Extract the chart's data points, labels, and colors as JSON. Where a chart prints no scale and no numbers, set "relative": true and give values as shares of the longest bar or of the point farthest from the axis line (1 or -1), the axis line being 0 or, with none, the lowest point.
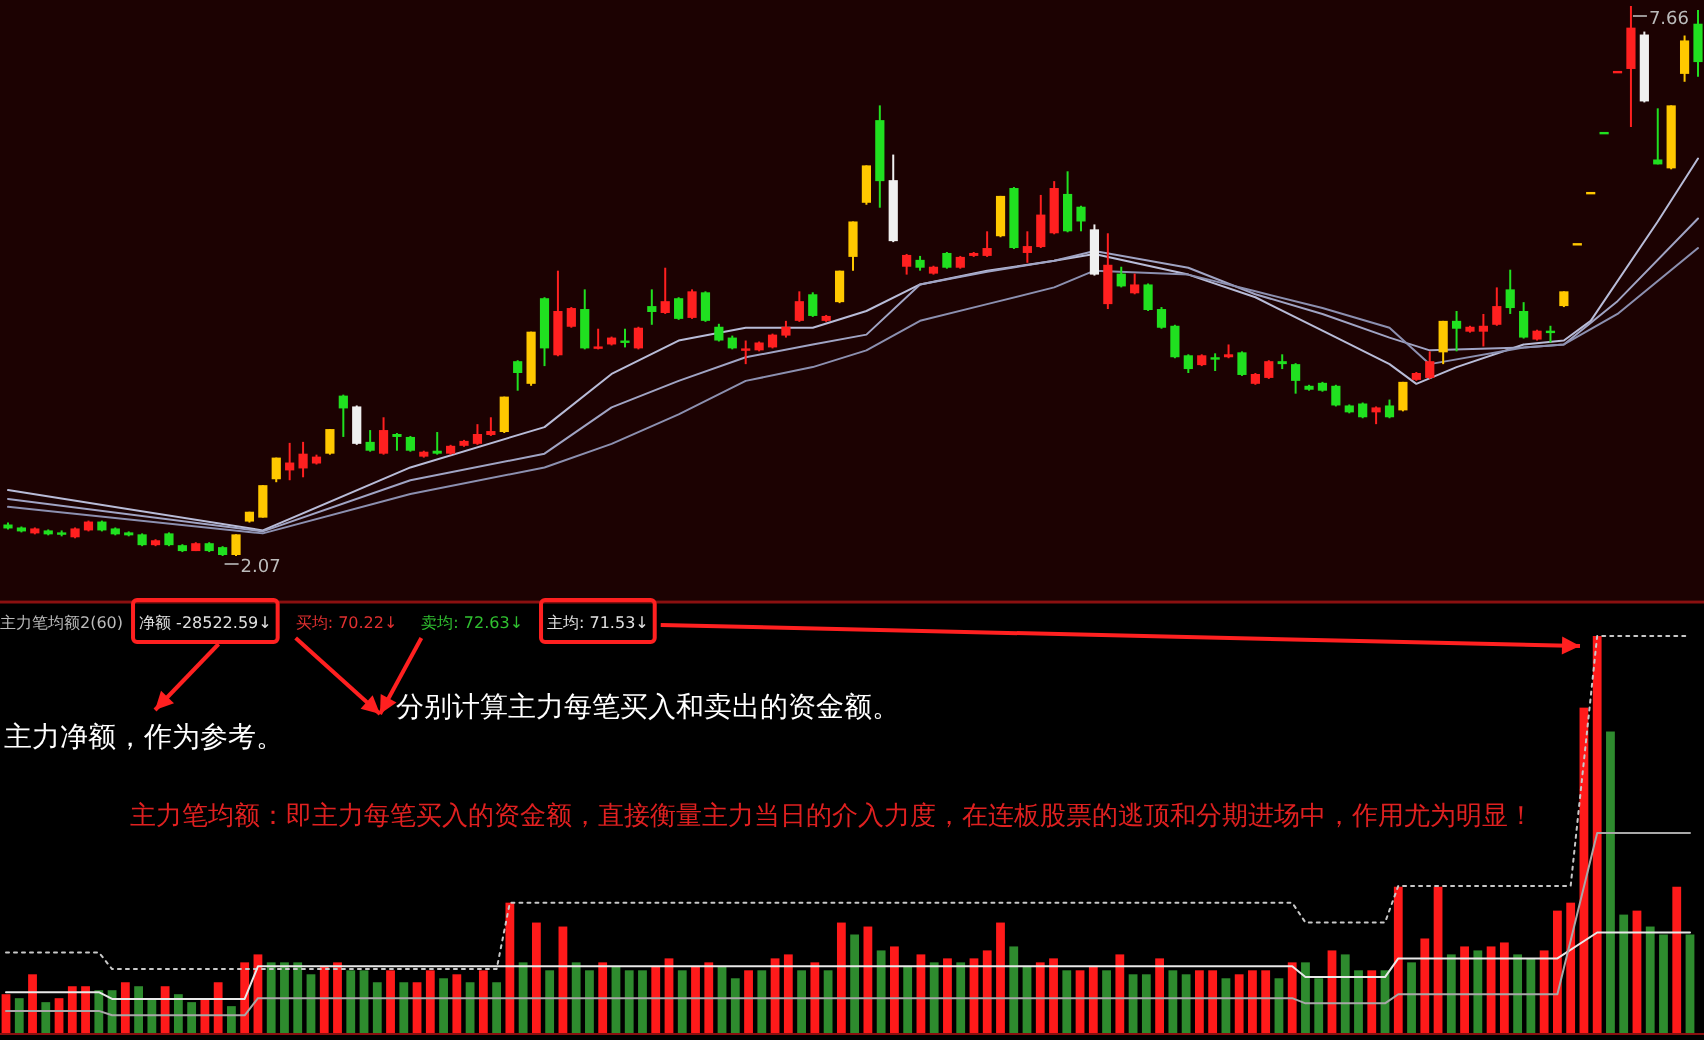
{
  "chart_data": [
    {
      "type": "candlestick",
      "categories": [
        null,
        null,
        null,
        null,
        null,
        null,
        null,
        null,
        null,
        null,
        null,
        null,
        null,
        null,
        null,
        null,
        null,
        null,
        null,
        null,
        null,
        null,
        null,
        null,
        null,
        null,
        null,
        null,
        null,
        null,
        null,
        null,
        null,
        null,
        null,
        null,
        null,
        null,
        null,
        null,
        null,
        null,
        null,
        null,
        null,
        null,
        null,
        null,
        null,
        null,
        null,
        null,
        null,
        null,
        null,
        null,
        null,
        null,
        null,
        null,
        null,
        null,
        null,
        null,
        null,
        null,
        null,
        null,
        null,
        null,
        null,
        null,
        null,
        null,
        null,
        null,
        null,
        null,
        null,
        null,
        null,
        null,
        null,
        null,
        null,
        null,
        null,
        null,
        null,
        null,
        null,
        null,
        null,
        null,
        null,
        null,
        null,
        null,
        null,
        null,
        null,
        null,
        null,
        null,
        null,
        null,
        null,
        null,
        null,
        null,
        null,
        null,
        null,
        null,
        null,
        null,
        null,
        null,
        null,
        null,
        null,
        null,
        null,
        null,
        null,
        null,
        null
      ],
      "ohlc": [
        [
          2.39,
          2.41,
          2.34,
          2.35
        ],
        [
          2.36,
          2.37,
          2.31,
          2.32
        ],
        [
          2.3,
          2.36,
          2.29,
          2.35
        ],
        [
          2.33,
          2.34,
          2.28,
          2.29
        ],
        [
          2.31,
          2.33,
          2.27,
          2.3
        ],
        [
          2.26,
          2.36,
          2.25,
          2.35
        ],
        [
          2.33,
          2.43,
          2.32,
          2.42
        ],
        [
          2.42,
          2.43,
          2.32,
          2.33
        ],
        [
          2.35,
          2.36,
          2.28,
          2.29
        ],
        [
          2.31,
          2.32,
          2.27,
          2.28
        ],
        [
          2.29,
          2.3,
          2.17,
          2.18
        ],
        [
          2.18,
          2.24,
          2.17,
          2.23
        ],
        [
          2.3,
          2.31,
          2.17,
          2.18
        ],
        [
          2.18,
          2.19,
          2.11,
          2.12
        ],
        [
          2.12,
          2.21,
          2.12,
          2.2
        ],
        [
          2.2,
          2.21,
          2.11,
          2.12
        ],
        [
          2.16,
          2.17,
          2.07,
          2.08
        ],
        [
          2.08,
          2.29,
          2.07,
          2.29
        ],
        [
          2.42,
          2.52,
          2.41,
          2.52
        ],
        [
          2.46,
          2.79,
          2.46,
          2.79
        ],
        [
          2.85,
          3.07,
          2.82,
          3.07
        ],
        [
          2.94,
          3.22,
          2.84,
          3.02
        ],
        [
          2.96,
          3.23,
          2.87,
          3.11
        ],
        [
          3.01,
          3.1,
          3.0,
          3.08
        ],
        [
          3.11,
          3.36,
          3.1,
          3.36
        ],
        [
          3.7,
          3.71,
          3.28,
          3.57
        ],
        [
          3.59,
          3.6,
          3.2,
          3.21
        ],
        [
          3.23,
          3.35,
          3.13,
          3.14
        ],
        [
          3.11,
          3.48,
          3.1,
          3.35
        ],
        [
          3.31,
          3.32,
          3.14,
          3.28
        ],
        [
          3.28,
          3.29,
          3.13,
          3.14
        ],
        [
          3.08,
          3.14,
          3.07,
          3.13
        ],
        [
          3.14,
          3.33,
          3.1,
          3.11
        ],
        [
          3.11,
          3.2,
          3.1,
          3.19
        ],
        [
          3.19,
          3.25,
          3.18,
          3.24
        ],
        [
          3.21,
          3.41,
          3.2,
          3.31
        ],
        [
          3.3,
          3.48,
          3.29,
          3.34
        ],
        [
          3.33,
          3.69,
          3.32,
          3.69
        ],
        [
          4.05,
          4.06,
          3.75,
          3.93
        ],
        [
          3.82,
          4.35,
          3.8,
          4.35
        ],
        [
          4.69,
          4.7,
          4.0,
          4.18
        ],
        [
          4.11,
          4.97,
          4.1,
          4.56
        ],
        [
          4.4,
          4.6,
          4.39,
          4.59
        ],
        [
          4.58,
          4.78,
          4.17,
          4.18
        ],
        [
          4.18,
          4.38,
          4.17,
          4.2
        ],
        [
          4.22,
          4.3,
          4.21,
          4.29
        ],
        [
          4.26,
          4.38,
          4.19,
          4.24
        ],
        [
          4.18,
          4.4,
          4.17,
          4.39
        ],
        [
          4.61,
          4.78,
          4.42,
          4.55
        ],
        [
          4.54,
          5.0,
          4.53,
          4.66
        ],
        [
          4.69,
          4.7,
          4.47,
          4.48
        ],
        [
          4.49,
          4.78,
          4.48,
          4.76
        ],
        [
          4.75,
          4.76,
          4.45,
          4.46
        ],
        [
          4.4,
          4.43,
          4.25,
          4.26
        ],
        [
          4.29,
          4.31,
          4.17,
          4.18
        ],
        [
          4.16,
          4.26,
          4.02,
          4.18
        ],
        [
          4.16,
          4.25,
          4.15,
          4.24
        ],
        [
          4.19,
          4.33,
          4.18,
          4.32
        ],
        [
          4.31,
          4.46,
          4.29,
          4.4
        ],
        [
          4.46,
          4.76,
          4.45,
          4.66
        ],
        [
          4.73,
          4.75,
          4.5,
          4.51
        ],
        [
          4.46,
          4.52,
          4.45,
          4.51
        ],
        [
          4.65,
          4.97,
          4.64,
          4.97
        ],
        [
          5.11,
          5.47,
          4.97,
          5.47
        ],
        [
          5.66,
          6.04,
          5.64,
          6.04
        ],
        [
          6.5,
          6.65,
          5.61,
          5.88
        ],
        [
          5.89,
          6.15,
          5.26,
          5.27
        ],
        [
          5.01,
          5.14,
          4.93,
          5.13
        ],
        [
          5.08,
          5.12,
          4.97,
          5.0
        ],
        [
          4.94,
          5.02,
          4.93,
          5.01
        ],
        [
          5.15,
          5.16,
          4.99,
          5.0
        ],
        [
          5.0,
          5.12,
          4.99,
          5.11
        ],
        [
          5.12,
          5.16,
          5.11,
          5.15
        ],
        [
          5.12,
          5.37,
          5.11,
          5.2
        ],
        [
          5.32,
          5.73,
          5.31,
          5.73
        ],
        [
          5.81,
          5.82,
          5.19,
          5.2
        ],
        [
          5.15,
          5.37,
          5.05,
          5.22
        ],
        [
          5.21,
          5.74,
          5.2,
          5.54
        ],
        [
          5.35,
          5.88,
          5.34,
          5.81
        ],
        [
          5.75,
          5.98,
          5.36,
          5.37
        ],
        [
          5.62,
          5.63,
          5.37,
          5.47
        ],
        [
          5.39,
          5.44,
          4.92,
          4.93
        ],
        [
          4.63,
          5.35,
          4.58,
          5.03
        ],
        [
          4.94,
          5.01,
          4.8,
          4.81
        ],
        [
          4.74,
          4.94,
          4.73,
          4.83
        ],
        [
          4.83,
          4.84,
          4.56,
          4.57
        ],
        [
          4.58,
          4.6,
          4.38,
          4.39
        ],
        [
          4.41,
          4.42,
          4.08,
          4.09
        ],
        [
          4.11,
          4.12,
          3.93,
          3.97
        ],
        [
          4.01,
          4.12,
          4.0,
          4.11
        ],
        [
          4.09,
          4.13,
          3.95,
          4.07
        ],
        [
          4.09,
          4.22,
          4.08,
          4.12
        ],
        [
          4.14,
          4.15,
          3.9,
          3.91
        ],
        [
          3.82,
          3.93,
          3.81,
          3.92
        ],
        [
          3.88,
          4.06,
          3.87,
          4.05
        ],
        [
          4.05,
          4.12,
          3.97,
          4.02
        ],
        [
          4.02,
          4.03,
          3.72,
          3.85
        ],
        [
          3.8,
          3.81,
          3.75,
          3.76
        ],
        [
          3.83,
          3.84,
          3.74,
          3.75
        ],
        [
          3.8,
          3.81,
          3.59,
          3.6
        ],
        [
          3.6,
          3.61,
          3.52,
          3.53
        ],
        [
          3.62,
          3.63,
          3.47,
          3.48
        ],
        [
          3.53,
          3.59,
          3.41,
          3.58
        ],
        [
          3.6,
          3.66,
          3.47,
          3.48
        ],
        [
          3.55,
          3.84,
          3.54,
          3.84
        ],
        [
          3.86,
          3.94,
          3.85,
          3.93
        ],
        [
          3.88,
          4.15,
          3.87,
          4.05
        ],
        [
          4.14,
          4.46,
          4.02,
          4.46
        ],
        [
          4.46,
          4.56,
          4.15,
          4.38
        ],
        [
          4.35,
          4.41,
          4.34,
          4.4
        ],
        [
          4.35,
          4.53,
          4.2,
          4.41
        ],
        [
          4.42,
          4.8,
          4.41,
          4.61
        ],
        [
          4.78,
          4.98,
          4.53,
          4.59
        ],
        [
          4.56,
          4.65,
          4.28,
          4.29
        ],
        [
          4.27,
          4.37,
          4.26,
          4.36
        ],
        [
          4.36,
          4.41,
          4.24,
          4.34
        ],
        [
          4.61,
          4.76,
          4.6,
          4.76
        ],
        [
          5.25,
          5.25,
          5.25,
          5.25
        ],
        [
          5.77,
          5.77,
          5.77,
          5.77
        ],
        [
          6.38,
          6.38,
          6.38,
          6.38
        ],
        [
          7.0,
          7.0,
          7.0,
          7.0
        ],
        [
          7.02,
          7.66,
          6.43,
          7.44
        ],
        [
          7.37,
          7.4,
          6.68,
          6.69
        ],
        [
          6.1,
          6.62,
          6.05,
          6.05
        ],
        [
          6.01,
          6.65,
          6.0,
          6.65
        ],
        [
          6.97,
          7.36,
          6.89,
          7.31
        ],
        [
          7.48,
          7.62,
          6.94,
          7.09
        ]
      ],
      "colors": [
        "#20e020",
        "#20e020",
        "#ff2020",
        "#20e020",
        "#20e020",
        "#ff2020",
        "#ff2020",
        "#20e020",
        "#20e020",
        "#20e020",
        "#20e020",
        "#ff2020",
        "#20e020",
        "#20e020",
        "#ff2020",
        "#20e020",
        "#20e020",
        "#ffc800",
        "#ffc800",
        "#ffc800",
        "#ffc800",
        "#ff2020",
        "#ff2020",
        "#ff2020",
        "#ffc800",
        "#20e020",
        "#f0f0f0",
        "#20e020",
        "#ff2020",
        "#20e020",
        "#20e020",
        "#ff2020",
        "#20e020",
        "#ff2020",
        "#ff2020",
        "#ff2020",
        "#ff2020",
        "#ffc800",
        "#20e020",
        "#ffc800",
        "#20e020",
        "#ff2020",
        "#ff2020",
        "#20e020",
        "#ff2020",
        "#ff2020",
        "#20e020",
        "#ff2020",
        "#20e020",
        "#ff2020",
        "#20e020",
        "#ff2020",
        "#20e020",
        "#20e020",
        "#20e020",
        "#ff2020",
        "#ff2020",
        "#ff2020",
        "#ff2020",
        "#ff2020",
        "#20e020",
        "#ff2020",
        "#ffc800",
        "#ffc800",
        "#ffc800",
        "#20e020",
        "#f0f0f0",
        "#ff2020",
        "#20e020",
        "#ff2020",
        "#20e020",
        "#ff2020",
        "#ff2020",
        "#ff2020",
        "#ffc800",
        "#20e020",
        "#ff2020",
        "#ff2020",
        "#ff2020",
        "#20e020",
        "#20e020",
        "#f0f0f0",
        "#ff2020",
        "#20e020",
        "#ff2020",
        "#20e020",
        "#20e020",
        "#20e020",
        "#20e020",
        "#ff2020",
        "#20e020",
        "#ff2020",
        "#20e020",
        "#ff2020",
        "#ff2020",
        "#20e020",
        "#20e020",
        "#20e020",
        "#20e020",
        "#20e020",
        "#20e020",
        "#20e020",
        "#ff2020",
        "#20e020",
        "#ffc800",
        "#ff2020",
        "#ff2020",
        "#ffc800",
        "#20e020",
        "#ff2020",
        "#ff2020",
        "#ff2020",
        "#20e020",
        "#20e020",
        "#ff2020",
        "#20e020",
        "#ffc800",
        "#ffc800",
        "#ffc800",
        "#20e020",
        "#ff2020",
        "#ff2020",
        "#f0f0f0",
        "#20e020",
        "#ffc800",
        "#ffc800",
        "#20e020"
      ],
      "series": [
        {
          "type": "line",
          "color": "#b8bcd8",
          "values": [
            2.74,
            null,
            null,
            null,
            null,
            null,
            null,
            null,
            null,
            null,
            null,
            null,
            null,
            null,
            null,
            null,
            null,
            null,
            null,
            2.33,
            null,
            null,
            null,
            null,
            null,
            null,
            null,
            null,
            null,
            null,
            2.97,
            null,
            null,
            null,
            null,
            null,
            null,
            null,
            null,
            null,
            3.38,
            null,
            null,
            null,
            null,
            3.92,
            null,
            null,
            null,
            null,
            4.26,
            null,
            null,
            null,
            null,
            4.39,
            null,
            null,
            null,
            null,
            4.39,
            null,
            null,
            null,
            4.56,
            null,
            null,
            null,
            4.83,
            null,
            null,
            null,
            null,
            4.97,
            null,
            null,
            null,
            null,
            5.07,
            null,
            null,
            5.14,
            null,
            null,
            null,
            null,
            null,
            null,
            4.93,
            null,
            null,
            null,
            null,
            4.7,
            null,
            null,
            null,
            null,
            4.36,
            null,
            null,
            null,
            null,
            4.02,
            null,
            3.82,
            null,
            null,
            3.99,
            null,
            null,
            null,
            null,
            4.22,
            null,
            null,
            4.26,
            null,
            4.46,
            null,
            null,
            null,
            null,
            5.47,
            null,
            null,
            6.11
          ]
        },
        {
          "type": "line",
          "color": "#a0a4c4",
          "values": [
            2.65,
            null,
            null,
            null,
            null,
            null,
            null,
            null,
            null,
            null,
            null,
            null,
            null,
            null,
            null,
            null,
            null,
            null,
            null,
            2.32,
            null,
            null,
            null,
            null,
            null,
            null,
            null,
            null,
            null,
            null,
            2.84,
            null,
            null,
            null,
            null,
            null,
            null,
            null,
            null,
            null,
            3.11,
            null,
            null,
            null,
            null,
            3.58,
            null,
            null,
            null,
            null,
            3.85,
            null,
            null,
            null,
            null,
            4.09,
            null,
            null,
            null,
            null,
            4.22,
            null,
            null,
            null,
            4.32,
            null,
            null,
            null,
            4.83,
            null,
            null,
            null,
            null,
            4.96,
            null,
            null,
            null,
            null,
            5.07,
            null,
            null,
            5.17,
            null,
            null,
            null,
            null,
            null,
            null,
            5.0,
            null,
            null,
            null,
            null,
            4.73,
            null,
            null,
            null,
            null,
            4.53,
            null,
            null,
            null,
            null,
            4.29,
            null,
            null,
            4.16,
            null,
            null,
            null,
            null,
            null,
            null,
            4.19,
            null,
            null,
            4.22,
            null,
            null,
            null,
            4.66,
            null,
            null,
            null,
            null,
            null,
            5.5
          ]
        },
        {
          "type": "line",
          "color": "#8c90b0",
          "values": [
            2.57,
            null,
            null,
            null,
            null,
            null,
            null,
            null,
            null,
            null,
            null,
            null,
            null,
            null,
            null,
            null,
            null,
            null,
            null,
            2.3,
            null,
            null,
            null,
            null,
            null,
            null,
            null,
            null,
            null,
            null,
            2.7,
            null,
            null,
            null,
            null,
            null,
            null,
            null,
            null,
            null,
            2.97,
            null,
            null,
            null,
            null,
            3.21,
            null,
            null,
            null,
            null,
            3.51,
            null,
            null,
            null,
            null,
            3.85,
            null,
            null,
            null,
            null,
            3.99,
            null,
            null,
            null,
            4.16,
            null,
            null,
            null,
            4.46,
            null,
            null,
            null,
            null,
            4.63,
            null,
            null,
            null,
            null,
            4.8,
            null,
            null,
            4.97,
            null,
            null,
            null,
            null,
            null,
            null,
            4.93,
            null,
            null,
            null,
            null,
            4.76,
            null,
            null,
            null,
            null,
            4.59,
            null,
            null,
            null,
            null,
            4.39,
            null,
            null,
            4.02,
            null,
            null,
            null,
            null,
            null,
            null,
            4.19,
            null,
            null,
            4.22,
            null,
            null,
            null,
            4.53,
            null,
            null,
            null,
            null,
            null,
            5.2
          ]
        }
      ],
      "annotations": [
        "7.66",
        "2.07"
      ]
    },
    {
      "type": "bar",
      "relative": true,
      "title": "主力笔均额2(60)",
      "categories": [
        null,
        null,
        null,
        null,
        null,
        null,
        null,
        null,
        null,
        null,
        null,
        null,
        null,
        null,
        null,
        null,
        null,
        null,
        null,
        null,
        null,
        null,
        null,
        null,
        null,
        null,
        null,
        null,
        null,
        null,
        null,
        null,
        null,
        null,
        null,
        null,
        null,
        null,
        null,
        null,
        null,
        null,
        null,
        null,
        null,
        null,
        null,
        null,
        null,
        null,
        null,
        null,
        null,
        null,
        null,
        null,
        null,
        null,
        null,
        null,
        null,
        null,
        null,
        null,
        null,
        null,
        null,
        null,
        null,
        null,
        null,
        null,
        null,
        null,
        null,
        null,
        null,
        null,
        null,
        null,
        null,
        null,
        null,
        null,
        null,
        null,
        null,
        null,
        null,
        null,
        null,
        null,
        null,
        null,
        null,
        null,
        null,
        null,
        null,
        null,
        null,
        null,
        null,
        null,
        null,
        null,
        null,
        null,
        null,
        null,
        null,
        null,
        null,
        null,
        null,
        null,
        null,
        null,
        null,
        null,
        null,
        null,
        null,
        null,
        null,
        null,
        null,
        null
      ],
      "values": [
        0.1,
        0.09,
        0.15,
        0.08,
        0.09,
        0.12,
        0.12,
        0.11,
        0.11,
        0.13,
        0.12,
        0.09,
        0.12,
        0.1,
        0.08,
        0.09,
        0.13,
        0.07,
        0.18,
        0.2,
        0.18,
        0.18,
        0.18,
        0.15,
        0.17,
        0.18,
        0.16,
        0.16,
        0.13,
        0.16,
        0.13,
        0.13,
        0.16,
        0.14,
        0.15,
        0.13,
        0.16,
        0.13,
        0.33,
        0.18,
        0.28,
        0.16,
        0.27,
        0.18,
        0.16,
        0.18,
        0.17,
        0.16,
        0.16,
        0.17,
        0.19,
        0.16,
        0.17,
        0.18,
        0.17,
        0.14,
        0.16,
        0.16,
        0.19,
        0.2,
        0.16,
        0.18,
        0.16,
        0.28,
        0.25,
        0.27,
        0.21,
        0.22,
        0.17,
        0.2,
        0.18,
        0.19,
        0.18,
        0.19,
        0.21,
        0.28,
        0.22,
        0.17,
        0.18,
        0.19,
        0.16,
        0.16,
        0.17,
        0.16,
        0.2,
        0.15,
        0.15,
        0.19,
        0.16,
        0.15,
        0.16,
        0.16,
        0.14,
        0.15,
        0.16,
        0.16,
        0.14,
        0.18,
        0.18,
        0.14,
        0.21,
        0.2,
        0.16,
        0.16,
        0.16,
        0.37,
        0.18,
        0.24,
        0.37,
        0.2,
        0.22,
        0.21,
        0.22,
        0.23,
        0.2,
        0.19,
        0.21,
        0.31,
        0.33,
        0.82,
        1.0,
        0.76,
        0.3,
        0.31,
        0.27,
        0.25,
        0.37,
        0.25
      ],
      "colors": [
        "#ff1a1a",
        "#2e8b2e",
        "#ff1a1a",
        "#2e8b2e",
        "#ff1a1a",
        "#ff1a1a",
        "#ff1a1a",
        "#2e8b2e",
        "#2e8b2e",
        "#ff1a1a",
        "#2e8b2e",
        "#2e8b2e",
        "#ff1a1a",
        "#2e8b2e",
        "#2e8b2e",
        "#ff1a1a",
        "#ff1a1a",
        "#2e8b2e",
        "#ff1a1a",
        "#ff1a1a",
        "#2e8b2e",
        "#2e8b2e",
        "#2e8b2e",
        "#2e8b2e",
        "#ff1a1a",
        "#ff1a1a",
        "#2e8b2e",
        "#2e8b2e",
        "#2e8b2e",
        "#ff1a1a",
        "#2e8b2e",
        "#ff1a1a",
        "#ff1a1a",
        "#2e8b2e",
        "#ff1a1a",
        "#2e8b2e",
        "#ff1a1a",
        "#2e8b2e",
        "#ff1a1a",
        "#2e8b2e",
        "#ff1a1a",
        "#2e8b2e",
        "#ff1a1a",
        "#2e8b2e",
        "#2e8b2e",
        "#ff1a1a",
        "#2e8b2e",
        "#2e8b2e",
        "#2e8b2e",
        "#ff1a1a",
        "#ff1a1a",
        "#2e8b2e",
        "#ff1a1a",
        "#ff1a1a",
        "#2e8b2e",
        "#2e8b2e",
        "#ff1a1a",
        "#2e8b2e",
        "#ff1a1a",
        "#ff1a1a",
        "#2e8b2e",
        "#ff1a1a",
        "#2e8b2e",
        "#ff1a1a",
        "#2e8b2e",
        "#ff1a1a",
        "#2e8b2e",
        "#ff1a1a",
        "#2e8b2e",
        "#ff1a1a",
        "#2e8b2e",
        "#ff1a1a",
        "#2e8b2e",
        "#ff1a1a",
        "#ff1a1a",
        "#ff1a1a",
        "#2e8b2e",
        "#2e8b2e",
        "#ff1a1a",
        "#ff1a1a",
        "#2e8b2e",
        "#ff1a1a",
        "#ff1a1a",
        "#2e8b2e",
        "#ff1a1a",
        "#2e8b2e",
        "#2e8b2e",
        "#ff1a1a",
        "#2e8b2e",
        "#2e8b2e",
        "#ff1a1a",
        "#ff1a1a",
        "#2e8b2e",
        "#ff1a1a",
        "#ff1a1a",
        "#ff1a1a",
        "#2e8b2e",
        "#ff1a1a",
        "#2e8b2e",
        "#2e8b2e",
        "#ff1a1a",
        "#2e8b2e",
        "#2e8b2e",
        "#ff1a1a",
        "#2e8b2e",
        "#ff1a1a",
        "#2e8b2e",
        "#ff1a1a",
        "#ff1a1a",
        "#2e8b2e",
        "#ff1a1a",
        "#2e8b2e",
        "#ff1a1a",
        "#ff1a1a",
        "#2e8b2e",
        "#2e8b2e",
        "#ff1a1a",
        "#ff1a1a",
        "#ff1a1a",
        "#ff1a1a",
        "#ff1a1a",
        "#2e8b2e",
        "#2e8b2e",
        "#ff1a1a",
        "#2e8b2e",
        "#2e8b2e",
        "#ff1a1a",
        "#2e8b2e"
      ],
      "annotations": [
        "净额 -28522.59↓",
        "买均: 70.22↓",
        "卖均: 72.63↓",
        "主均: 71.53↓",
        "主力净额，作为参考。",
        "分别计算主力每笔买入和卖出的资金额。",
        "主力笔均额：即主力每笔买入的资金额，直接衡量主力当日的介入力度，在连板股票的逃顶和分期进场中，作用尤为明显！"
      ]
    },
    {
      "type": "line",
      "relative": true,
      "categories": [
        null,
        null,
        null,
        null,
        null,
        null,
        null,
        null,
        null,
        null,
        null,
        null,
        null,
        null,
        null,
        null,
        null,
        null,
        null,
        null,
        null,
        null,
        null,
        null,
        null,
        null,
        null,
        null,
        null,
        null,
        null,
        null,
        null,
        null,
        null,
        null,
        null,
        null,
        null,
        null,
        null,
        null,
        null,
        null,
        null,
        null,
        null,
        null,
        null,
        null,
        null,
        null,
        null,
        null,
        null,
        null,
        null,
        null,
        null,
        null,
        null,
        null,
        null,
        null,
        null,
        null,
        null,
        null,
        null,
        null,
        null,
        null,
        null,
        null,
        null,
        null,
        null,
        null,
        null,
        null,
        null,
        null,
        null,
        null,
        null,
        null,
        null,
        null,
        null,
        null,
        null,
        null,
        null,
        null,
        null,
        null,
        null,
        null,
        null,
        null,
        null,
        null,
        null,
        null,
        null,
        null,
        null,
        null,
        null,
        null,
        null,
        null,
        null,
        null,
        null,
        null,
        null,
        null,
        null,
        null,
        null,
        null,
        null,
        null,
        null,
        null,
        null,
        null
      ],
      "series": [
        {
          "type": "line",
          "color": "#c8c8c8",
          "line_style": "dotted",
          "values": [
            0.205,
            null,
            null,
            null,
            null,
            null,
            null,
            0.205,
            0.163,
            null,
            null,
            null,
            null,
            null,
            null,
            null,
            null,
            null,
            null,
            null,
            null,
            null,
            null,
            null,
            null,
            null,
            null,
            null,
            null,
            null,
            null,
            null,
            null,
            null,
            null,
            null,
            null,
            0.163,
            0.33,
            null,
            null,
            null,
            null,
            null,
            null,
            null,
            null,
            null,
            null,
            null,
            null,
            null,
            null,
            null,
            null,
            null,
            null,
            null,
            null,
            null,
            null,
            null,
            null,
            null,
            null,
            null,
            null,
            null,
            null,
            null,
            null,
            null,
            null,
            null,
            null,
            null,
            null,
            null,
            null,
            null,
            null,
            null,
            null,
            null,
            null,
            null,
            null,
            null,
            null,
            null,
            null,
            null,
            null,
            null,
            null,
            null,
            null,
            0.33,
            0.28,
            null,
            null,
            null,
            null,
            null,
            0.28,
            0.372,
            null,
            null,
            null,
            null,
            null,
            null,
            null,
            null,
            null,
            null,
            null,
            null,
            0.372,
            null,
            1.0,
            null,
            null,
            null,
            null,
            null,
            null,
            1.0
          ]
        },
        {
          "type": "line",
          "color": "#e8e8e8",
          "line_style": "solid",
          "values": [
            0.105,
            null,
            null,
            null,
            null,
            null,
            null,
            0.105,
            0.088,
            null,
            null,
            null,
            null,
            null,
            null,
            null,
            null,
            null,
            0.088,
            0.17,
            null,
            null,
            null,
            null,
            null,
            null,
            null,
            null,
            null,
            null,
            null,
            null,
            null,
            null,
            null,
            null,
            null,
            null,
            null,
            null,
            null,
            null,
            null,
            null,
            null,
            null,
            null,
            null,
            null,
            null,
            null,
            null,
            null,
            null,
            null,
            null,
            null,
            null,
            null,
            null,
            null,
            null,
            null,
            null,
            null,
            null,
            null,
            null,
            null,
            null,
            null,
            null,
            null,
            null,
            null,
            null,
            null,
            null,
            null,
            null,
            null,
            null,
            null,
            null,
            null,
            null,
            null,
            null,
            null,
            null,
            null,
            null,
            null,
            null,
            null,
            null,
            null,
            0.17,
            0.143,
            null,
            null,
            null,
            null,
            null,
            0.143,
            0.19,
            null,
            null,
            null,
            null,
            null,
            null,
            null,
            null,
            null,
            null,
            null,
            0.19,
            null,
            null,
            0.255,
            null,
            null,
            null,
            null,
            null,
            null,
            0.255
          ]
        },
        {
          "type": "line",
          "color": "#a8a8a8",
          "line_style": "solid",
          "values": [
            0.058,
            null,
            null,
            null,
            null,
            null,
            null,
            0.058,
            0.047,
            null,
            null,
            null,
            null,
            null,
            null,
            null,
            null,
            null,
            0.047,
            0.09,
            null,
            null,
            null,
            null,
            null,
            null,
            null,
            null,
            null,
            null,
            null,
            null,
            null,
            null,
            null,
            null,
            null,
            null,
            null,
            null,
            null,
            null,
            null,
            null,
            null,
            null,
            null,
            null,
            null,
            null,
            null,
            null,
            null,
            null,
            null,
            null,
            null,
            null,
            null,
            null,
            null,
            null,
            null,
            null,
            null,
            null,
            null,
            null,
            null,
            null,
            null,
            null,
            null,
            null,
            null,
            null,
            null,
            null,
            null,
            null,
            null,
            null,
            null,
            null,
            null,
            null,
            null,
            null,
            null,
            null,
            null,
            null,
            null,
            null,
            null,
            null,
            null,
            0.09,
            0.077,
            null,
            null,
            null,
            null,
            null,
            0.077,
            0.1,
            null,
            null,
            null,
            null,
            null,
            null,
            null,
            null,
            null,
            null,
            null,
            0.1,
            null,
            null,
            0.505,
            null,
            null,
            null,
            null,
            null,
            null,
            0.505
          ]
        }
      ]
    }
  ]
}
